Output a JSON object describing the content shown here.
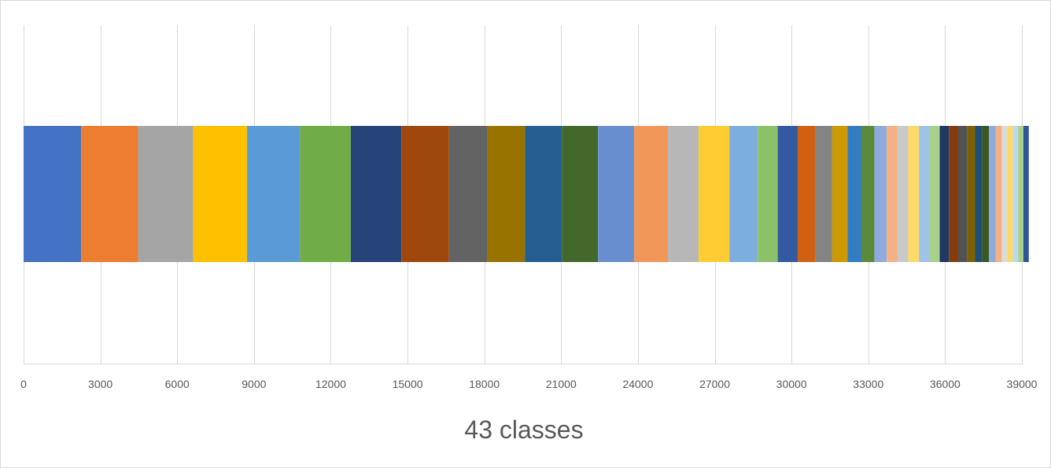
{
  "chart_data": {
    "type": "bar",
    "orientation": "horizontal",
    "stacked": true,
    "categories": [
      ""
    ],
    "xlabel": "43 classes",
    "xlim": [
      0,
      39000
    ],
    "x_ticks": [
      0,
      3000,
      6000,
      9000,
      12000,
      15000,
      18000,
      21000,
      24000,
      27000,
      30000,
      33000,
      36000,
      39000
    ],
    "grid": "vertical",
    "legend": "none",
    "series": [
      {
        "values": [
          2250
        ],
        "color": "#4472c4"
      },
      {
        "values": [
          2220
        ],
        "color": "#ed7d31"
      },
      {
        "values": [
          2160
        ],
        "color": "#a5a5a5"
      },
      {
        "values": [
          2100
        ],
        "color": "#ffc000"
      },
      {
        "values": [
          2070
        ],
        "color": "#5b9bd5"
      },
      {
        "values": [
          1980
        ],
        "color": "#70ad47"
      },
      {
        "values": [
          1980
        ],
        "color": "#264478"
      },
      {
        "values": [
          1860
        ],
        "color": "#9e480e"
      },
      {
        "values": [
          1500
        ],
        "color": "#636363"
      },
      {
        "values": [
          1470
        ],
        "color": "#997300"
      },
      {
        "values": [
          1440
        ],
        "color": "#255e91"
      },
      {
        "values": [
          1410
        ],
        "color": "#43682b"
      },
      {
        "values": [
          1410
        ],
        "color": "#698ed0"
      },
      {
        "values": [
          1320
        ],
        "color": "#f1975a"
      },
      {
        "values": [
          1200
        ],
        "color": "#b7b7b7"
      },
      {
        "values": [
          1200
        ],
        "color": "#ffcd33"
      },
      {
        "values": [
          1110
        ],
        "color": "#7cafdd"
      },
      {
        "values": [
          780
        ],
        "color": "#8cc168"
      },
      {
        "values": [
          780
        ],
        "color": "#335aa1"
      },
      {
        "values": [
          690
        ],
        "color": "#d26012"
      },
      {
        "values": [
          660
        ],
        "color": "#848484"
      },
      {
        "values": [
          600
        ],
        "color": "#cc9a00"
      },
      {
        "values": [
          540
        ],
        "color": "#327dc2"
      },
      {
        "values": [
          510
        ],
        "color": "#5a8a39"
      },
      {
        "values": [
          480
        ],
        "color": "#8faadc"
      },
      {
        "values": [
          420
        ],
        "color": "#f4b183"
      },
      {
        "values": [
          420
        ],
        "color": "#c9c9c9"
      },
      {
        "values": [
          420
        ],
        "color": "#ffd966"
      },
      {
        "values": [
          420
        ],
        "color": "#9dc3e6"
      },
      {
        "values": [
          390
        ],
        "color": "#a9d18e"
      },
      {
        "values": [
          360
        ],
        "color": "#203864"
      },
      {
        "values": [
          360
        ],
        "color": "#843c0c"
      },
      {
        "values": [
          360
        ],
        "color": "#525252"
      },
      {
        "values": [
          300
        ],
        "color": "#7f6000"
      },
      {
        "values": [
          270
        ],
        "color": "#1f4e79"
      },
      {
        "values": [
          270
        ],
        "color": "#385723"
      },
      {
        "values": [
          270
        ],
        "color": "#8faadc"
      },
      {
        "values": [
          240
        ],
        "color": "#f4b183"
      },
      {
        "values": [
          210
        ],
        "color": "#dbdbdb"
      },
      {
        "values": [
          210
        ],
        "color": "#ffd966"
      },
      {
        "values": [
          210
        ],
        "color": "#bdd7ee"
      },
      {
        "values": [
          210
        ],
        "color": "#a9d18e"
      },
      {
        "values": [
          210
        ],
        "color": "#2f5597"
      }
    ]
  }
}
